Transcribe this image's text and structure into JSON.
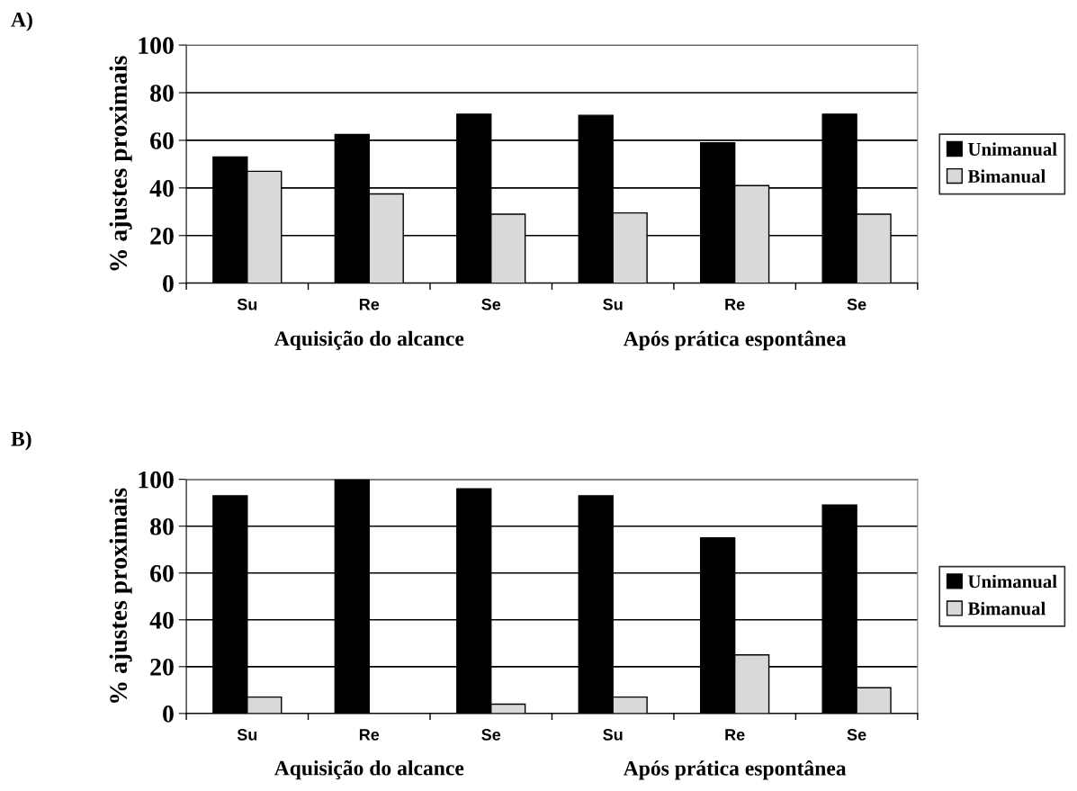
{
  "chart_data": [
    {
      "type": "bar",
      "title": "A)",
      "ylabel": "% ajustes proximais",
      "categories": [
        "Su",
        "Re",
        "Se",
        "Su",
        "Re",
        "Se"
      ],
      "annotations": [
        "Aquisição do alcance",
        "Após prática espontânea"
      ],
      "series": [
        {
          "name": "Unimanual",
          "color": "#000000",
          "values": [
            53,
            62.5,
            71,
            70.5,
            59,
            71
          ]
        },
        {
          "name": "Bimanual",
          "color": "#d9d9d9",
          "values": [
            47,
            37.5,
            29,
            29.5,
            41,
            29
          ]
        }
      ],
      "ylim": [
        0,
        100
      ],
      "yticks": [
        0,
        20,
        40,
        60,
        80,
        100
      ],
      "grid": "y",
      "legend": "right"
    },
    {
      "type": "bar",
      "title": "B)",
      "ylabel": "% ajustes proximais",
      "categories": [
        "Su",
        "Re",
        "Se",
        "Su",
        "Re",
        "Se"
      ],
      "annotations": [
        "Aquisição do alcance",
        "Após prática espontânea"
      ],
      "series": [
        {
          "name": "Unimanual",
          "color": "#000000",
          "values": [
            93,
            100,
            96,
            93,
            75,
            89
          ]
        },
        {
          "name": "Bimanual",
          "color": "#d9d9d9",
          "values": [
            7,
            0,
            4,
            7,
            25,
            11
          ]
        }
      ],
      "ylim": [
        0,
        100
      ],
      "yticks": [
        0,
        20,
        40,
        60,
        80,
        100
      ],
      "grid": "y",
      "legend": "right"
    }
  ]
}
